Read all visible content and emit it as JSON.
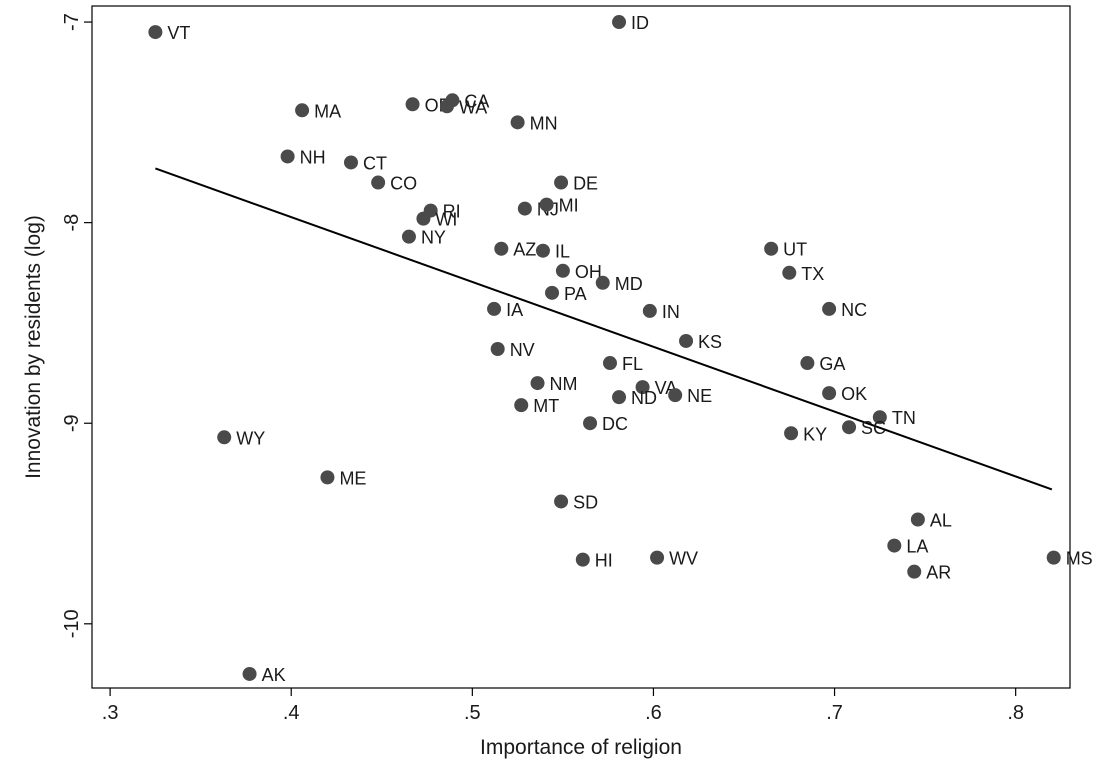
{
  "chart_data": {
    "type": "scatter",
    "xlabel": "Importance of religion",
    "ylabel": "Innovation by residents (log)",
    "xlim": [
      0.29,
      0.83
    ],
    "ylim": [
      -10.32,
      -6.92
    ],
    "xticks": [
      0.3,
      0.4,
      0.5,
      0.6,
      0.7,
      0.8
    ],
    "xtick_labels": [
      ".3",
      ".4",
      ".5",
      ".6",
      ".7",
      ".8"
    ],
    "yticks": [
      -10,
      -9,
      -8,
      -7
    ],
    "ytick_labels": [
      "-10",
      "-9",
      "-8",
      "-7"
    ],
    "grid": false,
    "legend": "none",
    "marker_color": "#4a4a4a",
    "fit_line": {
      "x": [
        0.325,
        0.82
      ],
      "y": [
        -7.73,
        -9.33
      ]
    },
    "points": [
      {
        "label": "VT",
        "x": 0.325,
        "y": -7.05
      },
      {
        "label": "ID",
        "x": 0.581,
        "y": -7.0
      },
      {
        "label": "MA",
        "x": 0.406,
        "y": -7.44
      },
      {
        "label": "OR",
        "x": 0.467,
        "y": -7.41
      },
      {
        "label": "CA",
        "x": 0.489,
        "y": -7.39
      },
      {
        "label": "WA",
        "x": 0.486,
        "y": -7.42
      },
      {
        "label": "MN",
        "x": 0.525,
        "y": -7.5
      },
      {
        "label": "NH",
        "x": 0.398,
        "y": -7.67
      },
      {
        "label": "CT",
        "x": 0.433,
        "y": -7.7
      },
      {
        "label": "CO",
        "x": 0.448,
        "y": -7.8
      },
      {
        "label": "DE",
        "x": 0.549,
        "y": -7.8
      },
      {
        "label": "RI",
        "x": 0.477,
        "y": -7.94
      },
      {
        "label": "WI",
        "x": 0.473,
        "y": -7.98
      },
      {
        "label": "NJ",
        "x": 0.529,
        "y": -7.93
      },
      {
        "label": "MI",
        "x": 0.541,
        "y": -7.91
      },
      {
        "label": "NY",
        "x": 0.465,
        "y": -8.07
      },
      {
        "label": "AZ",
        "x": 0.516,
        "y": -8.13
      },
      {
        "label": "IL",
        "x": 0.539,
        "y": -8.14
      },
      {
        "label": "UT",
        "x": 0.665,
        "y": -8.13
      },
      {
        "label": "OH",
        "x": 0.55,
        "y": -8.24
      },
      {
        "label": "TX",
        "x": 0.675,
        "y": -8.25
      },
      {
        "label": "MD",
        "x": 0.572,
        "y": -8.3
      },
      {
        "label": "PA",
        "x": 0.544,
        "y": -8.35
      },
      {
        "label": "IA",
        "x": 0.512,
        "y": -8.43
      },
      {
        "label": "NC",
        "x": 0.697,
        "y": -8.43
      },
      {
        "label": "IN",
        "x": 0.598,
        "y": -8.44
      },
      {
        "label": "KS",
        "x": 0.618,
        "y": -8.59
      },
      {
        "label": "NV",
        "x": 0.514,
        "y": -8.63
      },
      {
        "label": "FL",
        "x": 0.576,
        "y": -8.7
      },
      {
        "label": "GA",
        "x": 0.685,
        "y": -8.7
      },
      {
        "label": "NM",
        "x": 0.536,
        "y": -8.8
      },
      {
        "label": "VA",
        "x": 0.594,
        "y": -8.82
      },
      {
        "label": "NE",
        "x": 0.612,
        "y": -8.86
      },
      {
        "label": "ND",
        "x": 0.581,
        "y": -8.87
      },
      {
        "label": "OK",
        "x": 0.697,
        "y": -8.85
      },
      {
        "label": "MT",
        "x": 0.527,
        "y": -8.91
      },
      {
        "label": "TN",
        "x": 0.725,
        "y": -8.97
      },
      {
        "label": "SC",
        "x": 0.708,
        "y": -9.02
      },
      {
        "label": "DC",
        "x": 0.565,
        "y": -9.0
      },
      {
        "label": "KY",
        "x": 0.676,
        "y": -9.05
      },
      {
        "label": "WY",
        "x": 0.363,
        "y": -9.07
      },
      {
        "label": "ME",
        "x": 0.42,
        "y": -9.27
      },
      {
        "label": "SD",
        "x": 0.549,
        "y": -9.39
      },
      {
        "label": "AL",
        "x": 0.746,
        "y": -9.48
      },
      {
        "label": "LA",
        "x": 0.733,
        "y": -9.61
      },
      {
        "label": "HI",
        "x": 0.561,
        "y": -9.68
      },
      {
        "label": "WV",
        "x": 0.602,
        "y": -9.67
      },
      {
        "label": "MS",
        "x": 0.821,
        "y": -9.67
      },
      {
        "label": "AR",
        "x": 0.744,
        "y": -9.74
      },
      {
        "label": "AK",
        "x": 0.377,
        "y": -10.25
      }
    ]
  }
}
